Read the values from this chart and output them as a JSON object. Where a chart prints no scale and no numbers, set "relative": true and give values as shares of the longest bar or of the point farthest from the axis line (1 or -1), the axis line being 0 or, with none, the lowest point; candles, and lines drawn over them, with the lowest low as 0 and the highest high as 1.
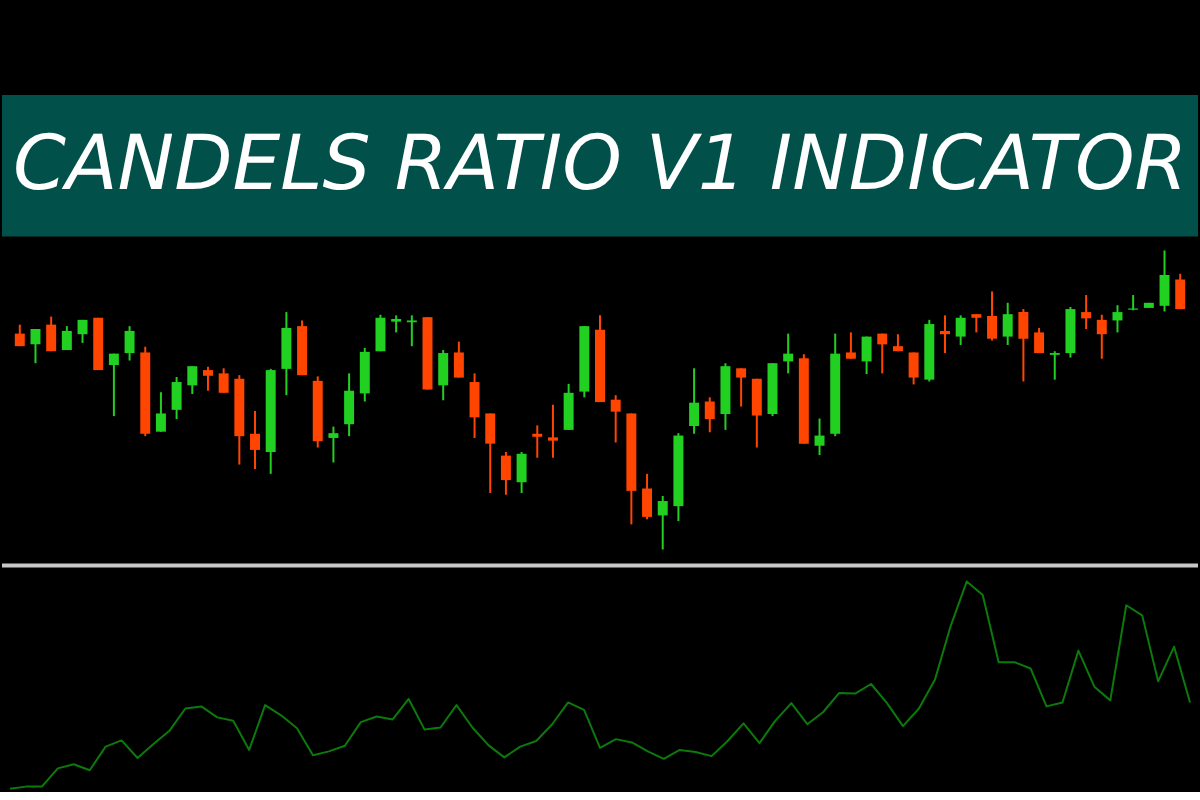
{
  "chart_data": [
    {
      "type": "candlestick",
      "title": "CANDELS RATIO V1 INDICATOR",
      "relative": true,
      "colors": [
        "#ff4500",
        "#22d022",
        "#ff4500",
        "#22d022",
        "#22d022",
        "#ff4500",
        "#22d022",
        "#22d022",
        "#ff4500",
        "#22d022",
        "#22d022",
        "#22d022",
        "#ff4500",
        "#ff4500",
        "#ff4500",
        "#ff4500",
        "#22d022",
        "#22d022",
        "#ff4500",
        "#ff4500",
        "#22d022",
        "#22d022",
        "#22d022",
        "#22d022",
        "#22d022",
        "#22d022",
        "#ff4500",
        "#22d022",
        "#ff4500",
        "#ff4500",
        "#ff4500",
        "#ff4500",
        "#22d022",
        "#ff4500",
        "#ff4500",
        "#22d022",
        "#22d022",
        "#ff4500",
        "#ff4500",
        "#ff4500",
        "#ff4500",
        "#22d022",
        "#22d022",
        "#22d022",
        "#ff4500",
        "#22d022",
        "#ff4500",
        "#ff4500",
        "#22d022",
        "#22d022",
        "#ff4500",
        "#22d022",
        "#22d022",
        "#ff4500",
        "#22d022",
        "#ff4500",
        "#ff4500",
        "#ff4500",
        "#22d022",
        "#ff4500",
        "#22d022",
        "#ff4500",
        "#ff4500",
        "#22d022",
        "#ff4500",
        "#ff4500",
        "#22d022",
        "#22d022",
        "#ff4500",
        "#ff4500",
        "#22d022",
        "#22d022",
        "#22d022",
        "#22d022",
        "#ff4500"
      ],
      "categories": [
        null,
        null,
        null,
        null,
        null,
        null,
        null,
        null,
        null,
        null,
        null,
        null,
        null,
        null,
        null,
        null,
        null,
        null,
        null,
        null,
        null,
        null,
        null,
        null,
        null,
        null,
        null,
        null,
        null,
        null,
        null,
        null,
        null,
        null,
        null,
        null,
        null,
        null,
        null,
        null,
        null,
        null,
        null,
        null,
        null,
        null,
        null,
        null,
        null,
        null,
        null,
        null,
        null,
        null,
        null,
        null,
        null,
        null,
        null,
        null,
        null,
        null,
        null,
        null,
        null,
        null,
        null,
        null,
        null,
        null,
        null,
        null,
        null,
        null,
        null
      ],
      "ohlc": [
        [
          0.722,
          0.752,
          0.68,
          0.68
        ],
        [
          0.686,
          0.737,
          0.623,
          0.737
        ],
        [
          0.752,
          0.779,
          0.663,
          0.663
        ],
        [
          0.667,
          0.747,
          0.667,
          0.731
        ],
        [
          0.72,
          0.768,
          0.691,
          0.768
        ],
        [
          0.775,
          0.775,
          0.6,
          0.6
        ],
        [
          0.617,
          0.655,
          0.446,
          0.655
        ],
        [
          0.657,
          0.747,
          0.632,
          0.731
        ],
        [
          0.659,
          0.678,
          0.379,
          0.387
        ],
        [
          0.394,
          0.526,
          0.394,
          0.455
        ],
        [
          0.467,
          0.577,
          0.436,
          0.56
        ],
        [
          0.549,
          0.613,
          0.52,
          0.613
        ],
        [
          0.6,
          0.611,
          0.531,
          0.581
        ],
        [
          0.589,
          0.606,
          0.524,
          0.524
        ],
        [
          0.571,
          0.583,
          0.284,
          0.379
        ],
        [
          0.387,
          0.463,
          0.269,
          0.333
        ],
        [
          0.326,
          0.604,
          0.253,
          0.6
        ],
        [
          0.604,
          0.794,
          0.516,
          0.741
        ],
        [
          0.747,
          0.766,
          0.583,
          0.583
        ],
        [
          0.564,
          0.579,
          0.341,
          0.362
        ],
        [
          0.373,
          0.411,
          0.291,
          0.389
        ],
        [
          0.419,
          0.589,
          0.379,
          0.531
        ],
        [
          0.522,
          0.674,
          0.495,
          0.661
        ],
        [
          0.663,
          0.785,
          0.663,
          0.775
        ],
        [
          0.762,
          0.783,
          0.726,
          0.771
        ],
        [
          0.76,
          0.783,
          0.68,
          0.766
        ],
        [
          0.777,
          0.777,
          0.535,
          0.535
        ],
        [
          0.549,
          0.667,
          0.499,
          0.657
        ],
        [
          0.659,
          0.695,
          0.575,
          0.575
        ],
        [
          0.56,
          0.589,
          0.373,
          0.442
        ],
        [
          0.455,
          0.455,
          0.189,
          0.354
        ],
        [
          0.314,
          0.326,
          0.183,
          0.232
        ],
        [
          0.225,
          0.326,
          0.189,
          0.32
        ],
        [
          0.387,
          0.415,
          0.307,
          0.377
        ],
        [
          0.375,
          0.484,
          0.307,
          0.364
        ],
        [
          0.4,
          0.554,
          0.4,
          0.524
        ],
        [
          0.528,
          0.747,
          0.509,
          0.747
        ],
        [
          0.735,
          0.783,
          0.493,
          0.493
        ],
        [
          0.501,
          0.516,
          0.358,
          0.461
        ],
        [
          0.455,
          0.455,
          0.084,
          0.196
        ],
        [
          0.204,
          0.253,
          0.101,
          0.109
        ],
        [
          0.114,
          0.179,
          0,
          0.162
        ],
        [
          0.145,
          0.389,
          0.095,
          0.381
        ],
        [
          0.413,
          0.606,
          0.387,
          0.491
        ],
        [
          0.495,
          0.509,
          0.392,
          0.436
        ],
        [
          0.453,
          0.623,
          0.4,
          0.613
        ],
        [
          0.606,
          0.606,
          0.478,
          0.575
        ],
        [
          0.571,
          0.571,
          0.341,
          0.448
        ],
        [
          0.453,
          0.623,
          0.446,
          0.623
        ],
        [
          0.629,
          0.722,
          0.589,
          0.655
        ],
        [
          0.64,
          0.653,
          0.354,
          0.354
        ],
        [
          0.347,
          0.438,
          0.316,
          0.381
        ],
        [
          0.387,
          0.722,
          0.379,
          0.655
        ],
        [
          0.659,
          0.726,
          0.638,
          0.638
        ],
        [
          0.629,
          0.712,
          0.587,
          0.712
        ],
        [
          0.722,
          0.722,
          0.589,
          0.686
        ],
        [
          0.68,
          0.72,
          0.663,
          0.663
        ],
        [
          0.659,
          0.659,
          0.552,
          0.575
        ],
        [
          0.568,
          0.768,
          0.562,
          0.754
        ],
        [
          0.731,
          0.783,
          0.657,
          0.72
        ],
        [
          0.712,
          0.783,
          0.684,
          0.775
        ],
        [
          0.787,
          0.787,
          0.726,
          0.775
        ],
        [
          0.781,
          0.863,
          0.699,
          0.705
        ],
        [
          0.712,
          0.825,
          0.684,
          0.787
        ],
        [
          0.794,
          0.804,
          0.562,
          0.705
        ],
        [
          0.726,
          0.741,
          0.657,
          0.657
        ],
        [
          0.651,
          0.663,
          0.568,
          0.657
        ],
        [
          0.657,
          0.811,
          0.642,
          0.804
        ],
        [
          0.794,
          0.851,
          0.737,
          0.773
        ],
        [
          0.768,
          0.785,
          0.638,
          0.72
        ],
        [
          0.766,
          0.817,
          0.726,
          0.794
        ],
        [
          0.802,
          0.851,
          0.8,
          0.806
        ],
        [
          0.808,
          0.825,
          0.808,
          0.825
        ],
        [
          0.815,
          1,
          0.796,
          0.918
        ],
        [
          0.903,
          0.922,
          0.804,
          0.804
        ]
      ]
    },
    {
      "type": "line",
      "relative": true,
      "categories": [
        null,
        null,
        null,
        null,
        null,
        null,
        null,
        null,
        null,
        null,
        null,
        null,
        null,
        null,
        null,
        null,
        null,
        null,
        null,
        null,
        null,
        null,
        null,
        null,
        null,
        null,
        null,
        null,
        null,
        null,
        null,
        null,
        null,
        null,
        null,
        null,
        null,
        null,
        null,
        null,
        null,
        null,
        null,
        null,
        null,
        null,
        null,
        null,
        null,
        null,
        null,
        null,
        null,
        null,
        null,
        null,
        null,
        null,
        null,
        null,
        null,
        null,
        null,
        null,
        null,
        null,
        null,
        null,
        null,
        null,
        null,
        null,
        null,
        null,
        null
      ],
      "series": [
        {
          "color": "#0b7a0b",
          "values": [
            0,
            0.01,
            0.01,
            0.098,
            0.118,
            0.089,
            0.203,
            0.233,
            0.148,
            0.216,
            0.279,
            0.387,
            0.397,
            0.344,
            0.328,
            0.187,
            0.403,
            0.354,
            0.292,
            0.161,
            0.18,
            0.207,
            0.321,
            0.348,
            0.334,
            0.433,
            0.285,
            0.295,
            0.403,
            0.295,
            0.21,
            0.151,
            0.203,
            0.23,
            0.311,
            0.416,
            0.38,
            0.197,
            0.239,
            0.223,
            0.18,
            0.144,
            0.187,
            0.177,
            0.157,
            0.23,
            0.315,
            0.22,
            0.328,
            0.413,
            0.311,
            0.37,
            0.462,
            0.459,
            0.505,
            0.413,
            0.302,
            0.387,
            0.525,
            0.787,
            1,
            0.934,
            0.61,
            0.61,
            0.58,
            0.397,
            0.416,
            0.666,
            0.492,
            0.426,
            0.885,
            0.836,
            0.518,
            0.685,
            0.416
          ]
        }
      ]
    }
  ]
}
